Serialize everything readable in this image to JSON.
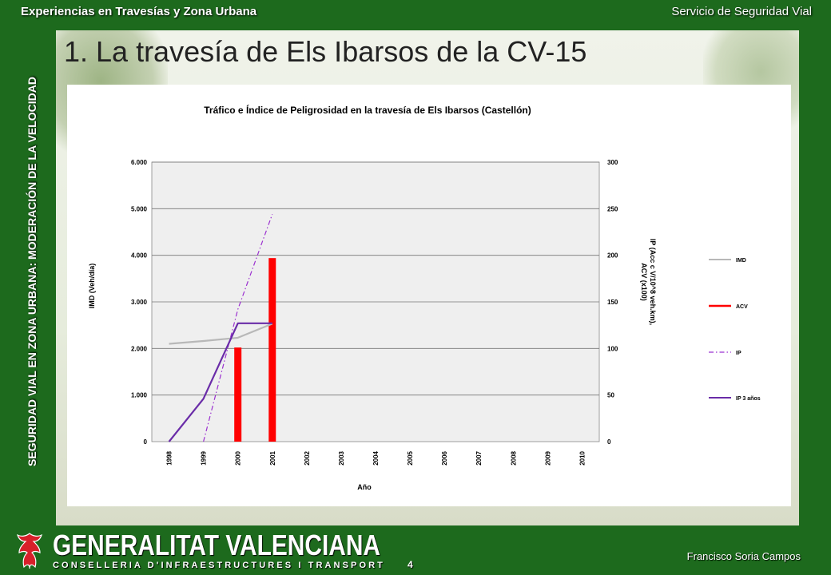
{
  "header": {
    "left": "Experiencias en Travesías y Zona Urbana",
    "right": "Servicio de Seguridad Vial"
  },
  "sidebar": {
    "vertical_label": "SEGURIDAD VIAL EN ZONA URBANA: MODERACIÓN DE LA VELOCIDAD"
  },
  "slide": {
    "title": "1.  La travesía de Els Ibarsos de la CV-15"
  },
  "footer": {
    "logo_name": "GENERALITAT VALENCIANA",
    "logo_sub": "CONSELLERIA D'INFRAESTRUCTURES I TRANSPORT",
    "page": "4",
    "author": "Francisco Soria Campos"
  },
  "chart_data": {
    "type": "bar",
    "title": "Tráfico e Índice de Peligrosidad en la travesía de Els Ibarsos (Castellón)",
    "xlabel": "Año",
    "ylabel_left": "IMD (Veh/día)",
    "ylabel_right": "IP (Acc c V/10^8 veh.km),\nACV (x100)",
    "categories": [
      "1998",
      "1999",
      "2000",
      "2001",
      "2002",
      "2003",
      "2004",
      "2005",
      "2006",
      "2007",
      "2008",
      "2009",
      "2010"
    ],
    "y_left": {
      "range": [
        0,
        6000
      ],
      "ticks": [
        "0",
        "1.000",
        "2.000",
        "3.000",
        "4.000",
        "5.000",
        "6.000"
      ]
    },
    "y_right": {
      "range": [
        0,
        300
      ],
      "ticks": [
        "0",
        "50",
        "100",
        "150",
        "200",
        "250",
        "300"
      ]
    },
    "grid": true,
    "legend_position": "right",
    "series": [
      {
        "name": "IMD",
        "kind": "line",
        "axis": "left",
        "color": "#b8b8b8",
        "dash": "solid",
        "values": [
          2100,
          2160,
          2230,
          2530,
          null,
          null,
          null,
          null,
          null,
          null,
          null,
          null,
          null
        ]
      },
      {
        "name": "ACV",
        "kind": "bar",
        "axis": "right",
        "color": "#ff0000",
        "values": [
          0,
          0,
          101,
          197,
          null,
          null,
          null,
          null,
          null,
          null,
          null,
          null,
          null
        ]
      },
      {
        "name": "IP",
        "kind": "line",
        "axis": "right",
        "color": "#9b30d0",
        "dash": "dashdot",
        "values": [
          null,
          0,
          142,
          244,
          null,
          null,
          null,
          null,
          null,
          null,
          null,
          null,
          null
        ]
      },
      {
        "name": "IP 3 años",
        "kind": "line",
        "axis": "right",
        "color": "#6a2ca8",
        "dash": "solid",
        "values": [
          0,
          46,
          127,
          127,
          null,
          null,
          null,
          null,
          null,
          null,
          null,
          null,
          null
        ]
      }
    ]
  }
}
